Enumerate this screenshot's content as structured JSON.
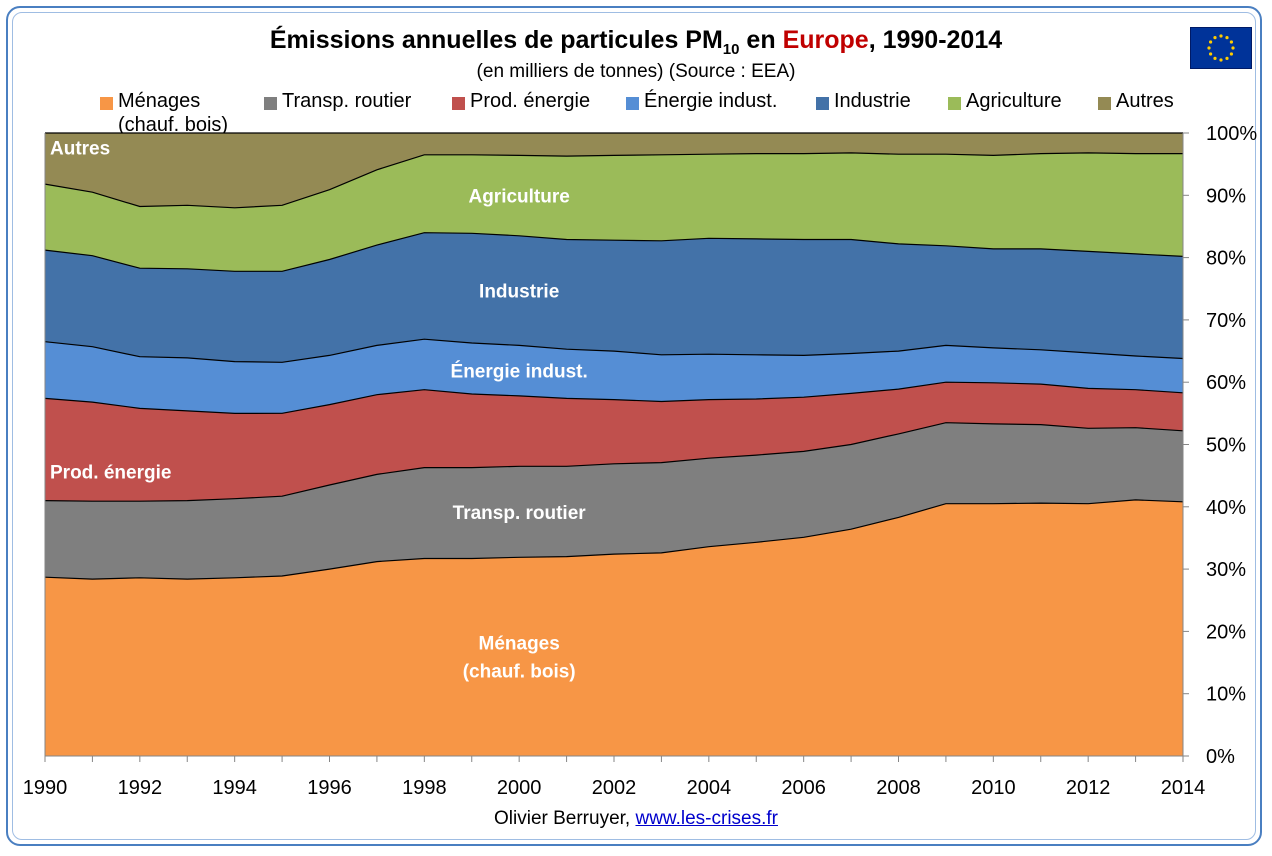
{
  "header": {
    "title_prefix": "Émissions annuelles de particules PM",
    "title_sub": "10",
    "title_mid": " en ",
    "title_highlight": "Europe",
    "title_suffix": ", 1990-2014",
    "subtitle": "(en milliers de tonnes) (Source : EEA)"
  },
  "legend": [
    {
      "label": "Ménages",
      "label2": "(chauf. bois)",
      "color": "#f79646"
    },
    {
      "label": "Transp. routier",
      "label2": "",
      "color": "#7f7f7f"
    },
    {
      "label": "Prod. énergie",
      "label2": "",
      "color": "#c0504d"
    },
    {
      "label": "Énergie indust.",
      "label2": "",
      "color": "#558ed5"
    },
    {
      "label": "Industrie",
      "label2": "",
      "color": "#4372a8"
    },
    {
      "label": "Agriculture",
      "label2": "",
      "color": "#9bbb59"
    },
    {
      "label": "Autres",
      "label2": "",
      "color": "#948a54"
    }
  ],
  "credit": {
    "author": "Olivier Berruyer,",
    "link": "www.les-crises.fr"
  },
  "flag_icon": "eu-flag-icon",
  "chart_data": {
    "type": "area",
    "stacked": true,
    "normalized_percent": true,
    "x": [
      1990,
      1991,
      1992,
      1993,
      1994,
      1995,
      1996,
      1997,
      1998,
      1999,
      2000,
      2001,
      2002,
      2003,
      2004,
      2005,
      2006,
      2007,
      2008,
      2009,
      2010,
      2011,
      2012,
      2013,
      2014
    ],
    "series": [
      {
        "name": "Ménages (chauf. bois)",
        "color": "#f79646",
        "values": [
          28.7,
          28.4,
          28.6,
          28.4,
          28.6,
          28.9,
          30.0,
          31.2,
          31.7,
          31.7,
          31.9,
          32.0,
          32.4,
          32.6,
          33.6,
          34.3,
          35.1,
          36.4,
          38.3,
          40.5,
          40.5,
          40.6,
          40.5,
          41.1,
          40.8
        ]
      },
      {
        "name": "Transp. routier",
        "color": "#7f7f7f",
        "values": [
          12.3,
          12.5,
          12.3,
          12.6,
          12.7,
          12.8,
          13.5,
          14.0,
          14.6,
          14.6,
          14.6,
          14.5,
          14.5,
          14.5,
          14.2,
          14.0,
          13.8,
          13.6,
          13.4,
          13.0,
          12.8,
          12.6,
          12.1,
          11.6,
          11.4
        ]
      },
      {
        "name": "Prod. énergie",
        "color": "#c0504d",
        "values": [
          16.4,
          15.9,
          14.9,
          14.4,
          13.7,
          13.3,
          12.9,
          12.8,
          12.5,
          11.8,
          11.3,
          10.9,
          10.3,
          9.8,
          9.4,
          9.0,
          8.7,
          8.2,
          7.2,
          6.5,
          6.6,
          6.5,
          6.4,
          6.1,
          6.1
        ]
      },
      {
        "name": "Énergie indust.",
        "color": "#558ed5",
        "values": [
          9.1,
          8.9,
          8.3,
          8.5,
          8.3,
          8.2,
          7.9,
          7.9,
          8.1,
          8.2,
          8.1,
          7.9,
          7.8,
          7.5,
          7.3,
          7.1,
          6.7,
          6.4,
          6.1,
          5.9,
          5.6,
          5.5,
          5.7,
          5.4,
          5.5
        ]
      },
      {
        "name": "Industrie",
        "color": "#4372a8",
        "values": [
          14.7,
          14.6,
          14.2,
          14.3,
          14.5,
          14.6,
          15.4,
          16.1,
          17.1,
          17.6,
          17.6,
          17.6,
          17.8,
          18.3,
          18.6,
          18.6,
          18.6,
          18.3,
          17.2,
          16.0,
          15.9,
          16.2,
          16.3,
          16.4,
          16.4
        ]
      },
      {
        "name": "Agriculture",
        "color": "#9bbb59",
        "values": [
          10.6,
          10.2,
          9.9,
          10.2,
          10.2,
          10.6,
          11.2,
          12.1,
          12.5,
          12.6,
          12.9,
          13.4,
          13.6,
          13.8,
          13.5,
          13.7,
          13.8,
          13.9,
          14.4,
          14.7,
          15.0,
          15.3,
          15.8,
          16.1,
          16.5
        ]
      },
      {
        "name": "Autres",
        "color": "#948a54",
        "values": [
          8.2,
          9.5,
          11.8,
          11.6,
          12.0,
          11.6,
          9.1,
          5.9,
          3.5,
          3.5,
          3.6,
          3.7,
          3.6,
          3.5,
          3.4,
          3.3,
          3.3,
          3.2,
          3.4,
          3.4,
          3.6,
          3.3,
          3.2,
          3.3,
          3.3
        ]
      }
    ],
    "xticks": [
      "1990",
      "1992",
      "1994",
      "1996",
      "1998",
      "2000",
      "2002",
      "2004",
      "2006",
      "2008",
      "2010",
      "2012",
      "2014"
    ],
    "yticks": [
      "0%",
      "10%",
      "20%",
      "30%",
      "40%",
      "50%",
      "60%",
      "70%",
      "80%",
      "90%",
      "100%"
    ],
    "ylim": [
      0,
      100
    ],
    "xlim": [
      1990,
      2014
    ],
    "y_axis_position": "right",
    "grid": false,
    "legend_position": "top",
    "area_labels": [
      {
        "series": "Ménages (chauf. bois)",
        "lines": [
          "Ménages",
          "(chauf. bois)"
        ]
      },
      {
        "series": "Transp. routier",
        "lines": [
          "Transp. routier"
        ]
      },
      {
        "series": "Prod. énergie",
        "lines": [
          "Prod. énergie"
        ]
      },
      {
        "series": "Énergie indust.",
        "lines": [
          "Énergie indust."
        ]
      },
      {
        "series": "Industrie",
        "lines": [
          "Industrie"
        ]
      },
      {
        "series": "Agriculture",
        "lines": [
          "Agriculture"
        ]
      },
      {
        "series": "Autres",
        "lines": [
          "Autres"
        ]
      }
    ]
  }
}
